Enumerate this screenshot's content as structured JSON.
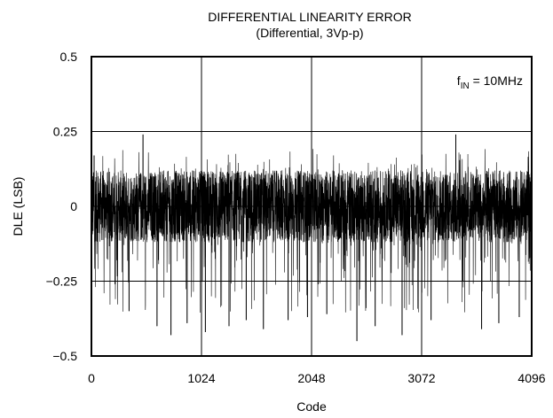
{
  "chart_data": {
    "type": "line",
    "title": "DIFFERENTIAL LINEARITY ERROR",
    "subtitle": "(Differential, 3Vp-p)",
    "xlabel": "Code",
    "ylabel": "DLE (LSB)",
    "xlim": [
      0,
      4096
    ],
    "ylim": [
      -0.5,
      0.5
    ],
    "x_ticks": [
      0,
      1024,
      2048,
      3072,
      4096
    ],
    "x_tick_labels": [
      "0",
      "1024",
      "2048",
      "3072",
      "4096"
    ],
    "y_ticks": [
      0.5,
      0.25,
      0,
      -0.25,
      -0.5
    ],
    "y_tick_labels": [
      "0.5",
      "0.25",
      "0",
      "−0.25",
      "−0.5"
    ],
    "grid": true,
    "annotation": {
      "prefix": "f",
      "subscript": "IN",
      "suffix": " = 10MHz",
      "placement": "top-right"
    },
    "series": [
      {
        "envelope": {
          "typical_range": [
            -0.12,
            0.12
          ],
          "max": 0.24,
          "min": -0.45
        },
        "notable_points": [
          {
            "x": 25,
            "y": 0.17
          },
          {
            "x": 220,
            "y": -0.26
          },
          {
            "x": 350,
            "y": -0.35
          },
          {
            "x": 480,
            "y": 0.24
          },
          {
            "x": 610,
            "y": -0.4
          },
          {
            "x": 740,
            "y": -0.43
          },
          {
            "x": 890,
            "y": -0.39
          },
          {
            "x": 1060,
            "y": -0.42
          },
          {
            "x": 1280,
            "y": -0.4
          },
          {
            "x": 1440,
            "y": -0.38
          },
          {
            "x": 1600,
            "y": -0.41
          },
          {
            "x": 1830,
            "y": -0.38
          },
          {
            "x": 2010,
            "y": -0.37
          },
          {
            "x": 2190,
            "y": -0.36
          },
          {
            "x": 2470,
            "y": -0.45
          },
          {
            "x": 2640,
            "y": -0.4
          },
          {
            "x": 2890,
            "y": -0.43
          },
          {
            "x": 3160,
            "y": -0.38
          },
          {
            "x": 3390,
            "y": 0.24
          },
          {
            "x": 3630,
            "y": -0.41
          },
          {
            "x": 3790,
            "y": -0.39
          },
          {
            "x": 3980,
            "y": -0.37
          }
        ]
      }
    ]
  }
}
